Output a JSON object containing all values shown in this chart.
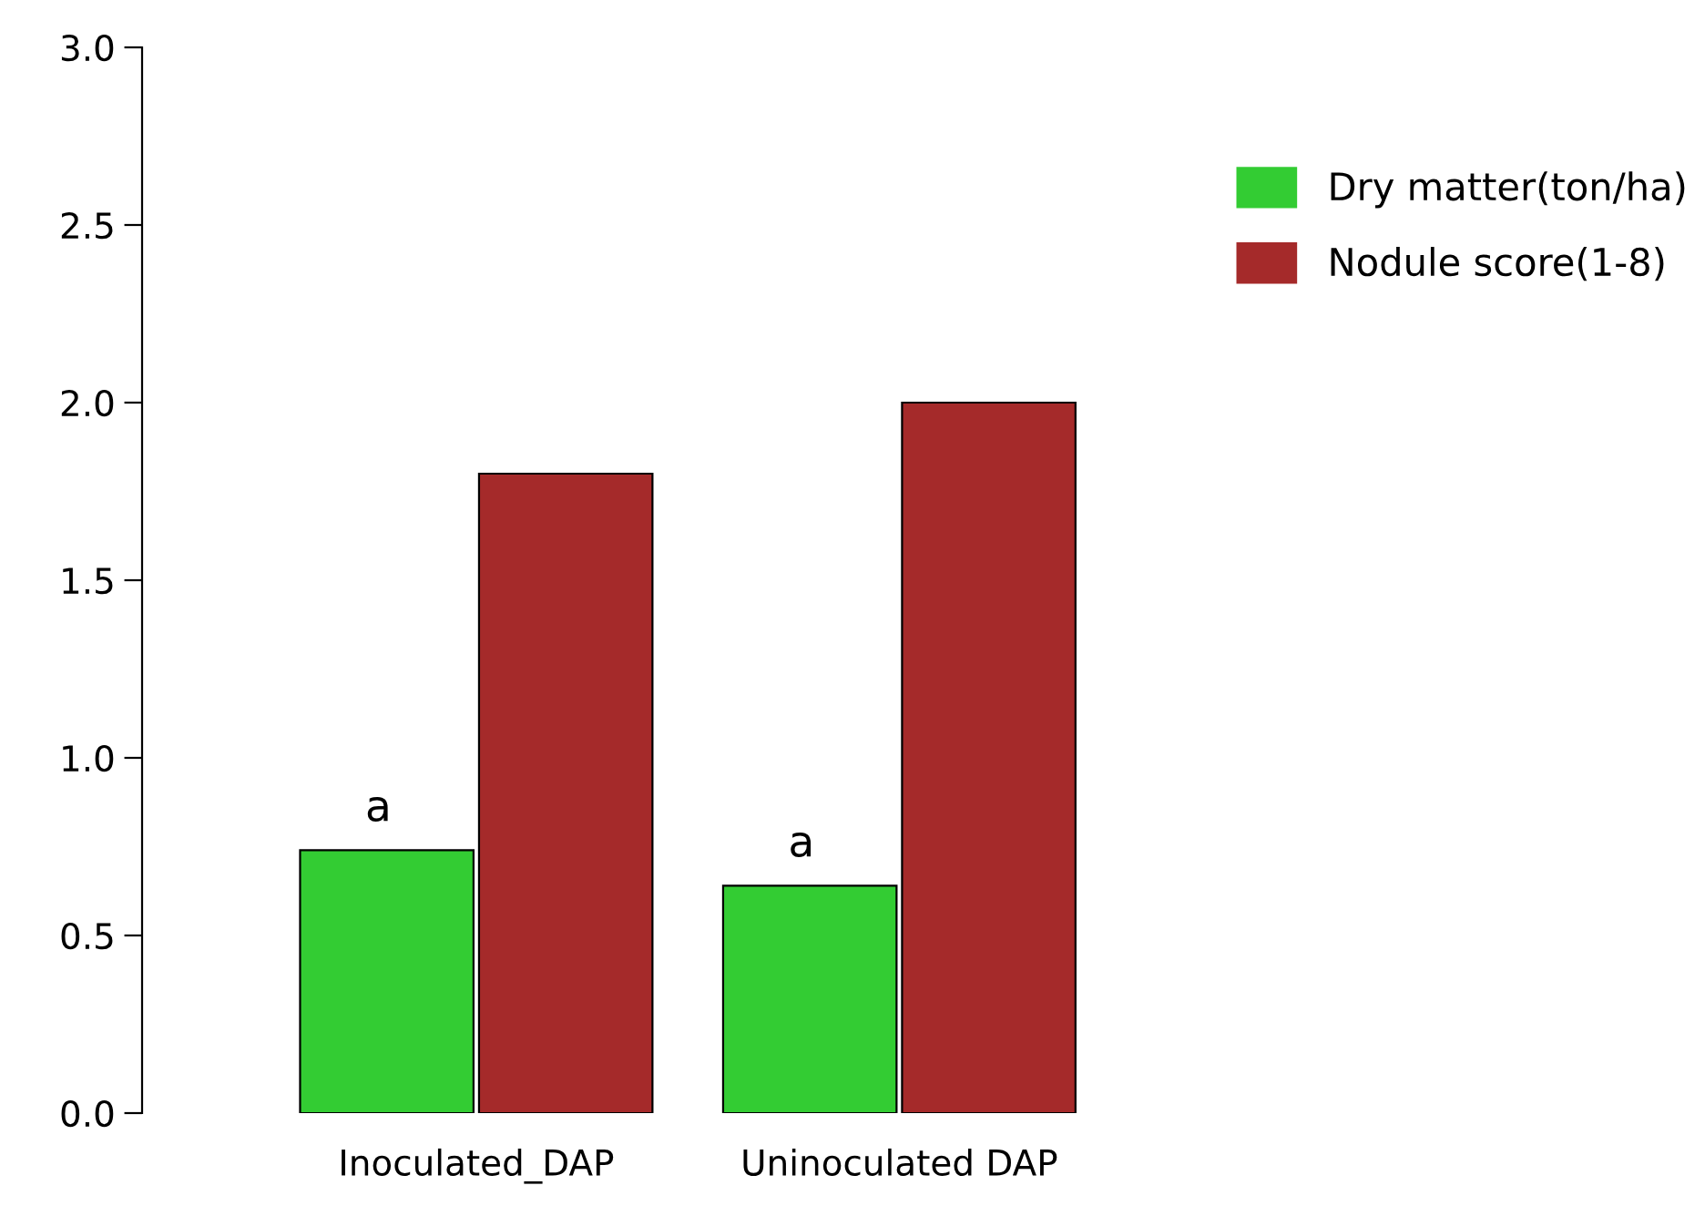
{
  "chart_data": {
    "type": "bar",
    "categories": [
      "Inoculated_DAP",
      "Uninoculated DAP"
    ],
    "series": [
      {
        "name": "Dry matter(ton/ha)",
        "color": "#33cc33",
        "values": [
          0.74,
          0.64
        ]
      },
      {
        "name": "Nodule score(1-8)",
        "color": "#a52a2a",
        "values": [
          1.8,
          2.0
        ]
      }
    ],
    "ylim": [
      0,
      3.0
    ],
    "yticks": [
      {
        "value": 0,
        "label": "0.0"
      },
      {
        "value": 0.5,
        "label": "0.5"
      },
      {
        "value": 1.0,
        "label": "1.0"
      },
      {
        "value": 1.5,
        "label": "1.5"
      },
      {
        "value": 2.0,
        "label": "2.0"
      },
      {
        "value": 2.5,
        "label": "2.5"
      },
      {
        "value": 3.0,
        "label": "3.0"
      }
    ],
    "annotations": [
      "a",
      "a"
    ],
    "legend": "top right",
    "grid": false
  }
}
